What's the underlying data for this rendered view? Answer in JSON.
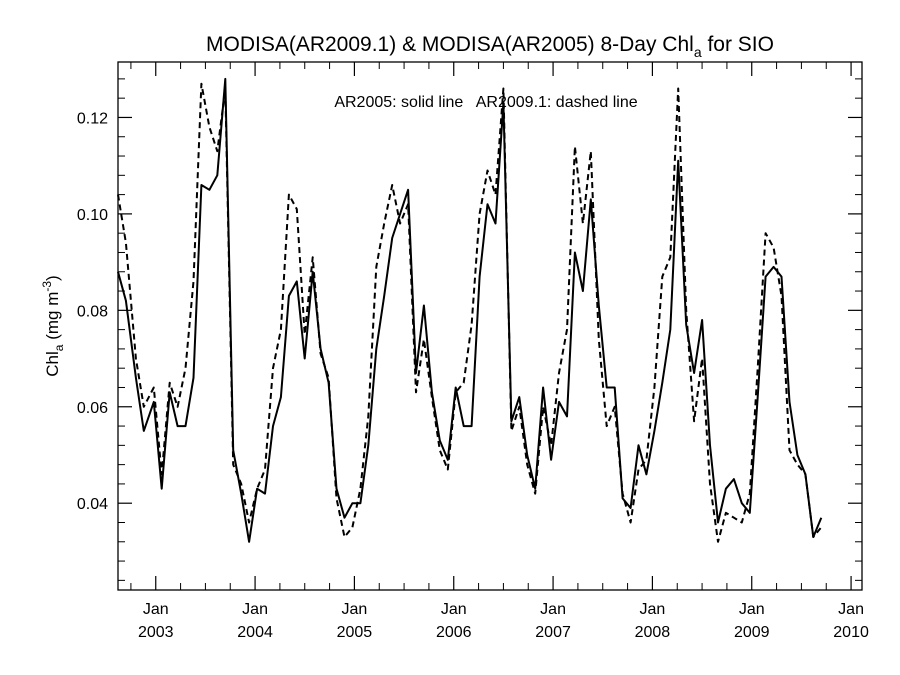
{
  "chart_data": {
    "type": "line",
    "title": {
      "main": "MODISA(AR2009.1) & MODISA(AR2005) 8-Day Chl",
      "sub": "a",
      "suffix": " for SIO"
    },
    "annotation": "AR2005: solid line   AR2009.1: dashed line",
    "ylabel": {
      "base": "Chl",
      "sub": "a",
      "mid": " (mg m",
      "sup": "-3",
      "end": ")"
    },
    "ylim": [
      0.022,
      0.1315
    ],
    "yticks": [
      0.04,
      0.06,
      0.08,
      0.1,
      0.12
    ],
    "ytick_labels": [
      "0.04",
      "0.06",
      "0.08",
      "0.10",
      "0.12"
    ],
    "xlim": [
      2002.62,
      2010.11
    ],
    "xticks": [
      {
        "x": 2003.0,
        "month": "Jan",
        "year": "2003"
      },
      {
        "x": 2004.0,
        "month": "Jan",
        "year": "2004"
      },
      {
        "x": 2005.0,
        "month": "Jan",
        "year": "2005"
      },
      {
        "x": 2006.0,
        "month": "Jan",
        "year": "2006"
      },
      {
        "x": 2007.0,
        "month": "Jan",
        "year": "2007"
      },
      {
        "x": 2008.0,
        "month": "Jan",
        "year": "2008"
      },
      {
        "x": 2009.0,
        "month": "Jan",
        "year": "2009"
      },
      {
        "x": 2010.0,
        "month": "Jan",
        "year": "2010"
      }
    ],
    "series": [
      {
        "name": "AR2005",
        "style": "solid",
        "color": "#000000",
        "points": [
          [
            2002.62,
            0.088
          ],
          [
            2002.7,
            0.082
          ],
          [
            2002.8,
            0.066
          ],
          [
            2002.88,
            0.055
          ],
          [
            2002.98,
            0.061
          ],
          [
            2003.06,
            0.043
          ],
          [
            2003.14,
            0.063
          ],
          [
            2003.22,
            0.056
          ],
          [
            2003.3,
            0.056
          ],
          [
            2003.38,
            0.066
          ],
          [
            2003.46,
            0.106
          ],
          [
            2003.54,
            0.105
          ],
          [
            2003.62,
            0.108
          ],
          [
            2003.7,
            0.128
          ],
          [
            2003.78,
            0.051
          ],
          [
            2003.86,
            0.042
          ],
          [
            2003.94,
            0.032
          ],
          [
            2004.02,
            0.043
          ],
          [
            2004.1,
            0.042
          ],
          [
            2004.18,
            0.056
          ],
          [
            2004.26,
            0.062
          ],
          [
            2004.34,
            0.083
          ],
          [
            2004.42,
            0.086
          ],
          [
            2004.5,
            0.07
          ],
          [
            2004.58,
            0.088
          ],
          [
            2004.66,
            0.072
          ],
          [
            2004.74,
            0.065
          ],
          [
            2004.82,
            0.043
          ],
          [
            2004.9,
            0.037
          ],
          [
            2004.98,
            0.04
          ],
          [
            2005.06,
            0.04
          ],
          [
            2005.14,
            0.052
          ],
          [
            2005.22,
            0.072
          ],
          [
            2005.3,
            0.083
          ],
          [
            2005.38,
            0.095
          ],
          [
            2005.46,
            0.1
          ],
          [
            2005.54,
            0.105
          ],
          [
            2005.62,
            0.067
          ],
          [
            2005.7,
            0.081
          ],
          [
            2005.78,
            0.063
          ],
          [
            2005.86,
            0.053
          ],
          [
            2005.94,
            0.049
          ],
          [
            2006.02,
            0.064
          ],
          [
            2006.1,
            0.056
          ],
          [
            2006.18,
            0.056
          ],
          [
            2006.26,
            0.087
          ],
          [
            2006.34,
            0.102
          ],
          [
            2006.42,
            0.098
          ],
          [
            2006.5,
            0.123
          ],
          [
            2006.58,
            0.057
          ],
          [
            2006.66,
            0.062
          ],
          [
            2006.74,
            0.05
          ],
          [
            2006.82,
            0.043
          ],
          [
            2006.9,
            0.064
          ],
          [
            2006.98,
            0.049
          ],
          [
            2007.06,
            0.061
          ],
          [
            2007.14,
            0.058
          ],
          [
            2007.22,
            0.092
          ],
          [
            2007.3,
            0.084
          ],
          [
            2007.38,
            0.103
          ],
          [
            2007.46,
            0.081
          ],
          [
            2007.54,
            0.064
          ],
          [
            2007.62,
            0.064
          ],
          [
            2007.7,
            0.041
          ],
          [
            2007.78,
            0.039
          ],
          [
            2007.86,
            0.052
          ],
          [
            2007.94,
            0.046
          ],
          [
            2008.02,
            0.055
          ],
          [
            2008.1,
            0.065
          ],
          [
            2008.18,
            0.076
          ],
          [
            2008.26,
            0.111
          ],
          [
            2008.34,
            0.077
          ],
          [
            2008.42,
            0.067
          ],
          [
            2008.5,
            0.078
          ],
          [
            2008.58,
            0.052
          ],
          [
            2008.66,
            0.036
          ],
          [
            2008.74,
            0.043
          ],
          [
            2008.82,
            0.045
          ],
          [
            2008.9,
            0.04
          ],
          [
            2008.98,
            0.038
          ],
          [
            2009.06,
            0.062
          ],
          [
            2009.14,
            0.087
          ],
          [
            2009.22,
            0.089
          ],
          [
            2009.3,
            0.087
          ],
          [
            2009.38,
            0.061
          ],
          [
            2009.46,
            0.05
          ],
          [
            2009.54,
            0.046
          ],
          [
            2009.62,
            0.033
          ],
          [
            2009.7,
            0.037
          ]
        ]
      },
      {
        "name": "AR2009.1",
        "style": "dashed",
        "color": "#000000",
        "points": [
          [
            2002.62,
            0.104
          ],
          [
            2002.7,
            0.094
          ],
          [
            2002.8,
            0.07
          ],
          [
            2002.88,
            0.06
          ],
          [
            2002.98,
            0.064
          ],
          [
            2003.06,
            0.046
          ],
          [
            2003.14,
            0.065
          ],
          [
            2003.22,
            0.06
          ],
          [
            2003.3,
            0.068
          ],
          [
            2003.38,
            0.086
          ],
          [
            2003.46,
            0.127
          ],
          [
            2003.54,
            0.118
          ],
          [
            2003.62,
            0.113
          ],
          [
            2003.7,
            0.126
          ],
          [
            2003.78,
            0.048
          ],
          [
            2003.86,
            0.044
          ],
          [
            2003.94,
            0.036
          ],
          [
            2004.02,
            0.043
          ],
          [
            2004.1,
            0.047
          ],
          [
            2004.18,
            0.068
          ],
          [
            2004.26,
            0.076
          ],
          [
            2004.34,
            0.104
          ],
          [
            2004.42,
            0.101
          ],
          [
            2004.5,
            0.075
          ],
          [
            2004.58,
            0.091
          ],
          [
            2004.66,
            0.071
          ],
          [
            2004.74,
            0.066
          ],
          [
            2004.82,
            0.041
          ],
          [
            2004.9,
            0.033
          ],
          [
            2004.98,
            0.035
          ],
          [
            2005.06,
            0.043
          ],
          [
            2005.14,
            0.058
          ],
          [
            2005.22,
            0.089
          ],
          [
            2005.3,
            0.098
          ],
          [
            2005.38,
            0.106
          ],
          [
            2005.46,
            0.098
          ],
          [
            2005.54,
            0.102
          ],
          [
            2005.62,
            0.063
          ],
          [
            2005.7,
            0.074
          ],
          [
            2005.78,
            0.062
          ],
          [
            2005.86,
            0.051
          ],
          [
            2005.94,
            0.047
          ],
          [
            2006.02,
            0.063
          ],
          [
            2006.1,
            0.065
          ],
          [
            2006.18,
            0.077
          ],
          [
            2006.26,
            0.1
          ],
          [
            2006.34,
            0.109
          ],
          [
            2006.42,
            0.104
          ],
          [
            2006.5,
            0.126
          ],
          [
            2006.58,
            0.055
          ],
          [
            2006.66,
            0.06
          ],
          [
            2006.74,
            0.048
          ],
          [
            2006.82,
            0.042
          ],
          [
            2006.9,
            0.06
          ],
          [
            2006.98,
            0.052
          ],
          [
            2007.06,
            0.067
          ],
          [
            2007.14,
            0.076
          ],
          [
            2007.22,
            0.114
          ],
          [
            2007.3,
            0.098
          ],
          [
            2007.38,
            0.113
          ],
          [
            2007.46,
            0.074
          ],
          [
            2007.54,
            0.056
          ],
          [
            2007.62,
            0.06
          ],
          [
            2007.7,
            0.042
          ],
          [
            2007.78,
            0.036
          ],
          [
            2007.86,
            0.047
          ],
          [
            2007.94,
            0.049
          ],
          [
            2008.02,
            0.064
          ],
          [
            2008.1,
            0.087
          ],
          [
            2008.18,
            0.091
          ],
          [
            2008.26,
            0.126
          ],
          [
            2008.34,
            0.08
          ],
          [
            2008.42,
            0.057
          ],
          [
            2008.5,
            0.07
          ],
          [
            2008.58,
            0.044
          ],
          [
            2008.66,
            0.032
          ],
          [
            2008.74,
            0.038
          ],
          [
            2008.82,
            0.037
          ],
          [
            2008.9,
            0.036
          ],
          [
            2008.98,
            0.042
          ],
          [
            2009.06,
            0.068
          ],
          [
            2009.14,
            0.096
          ],
          [
            2009.22,
            0.093
          ],
          [
            2009.3,
            0.083
          ],
          [
            2009.38,
            0.051
          ],
          [
            2009.46,
            0.048
          ],
          [
            2009.54,
            0.046
          ],
          [
            2009.62,
            0.033
          ],
          [
            2009.7,
            0.035
          ]
        ]
      }
    ]
  }
}
